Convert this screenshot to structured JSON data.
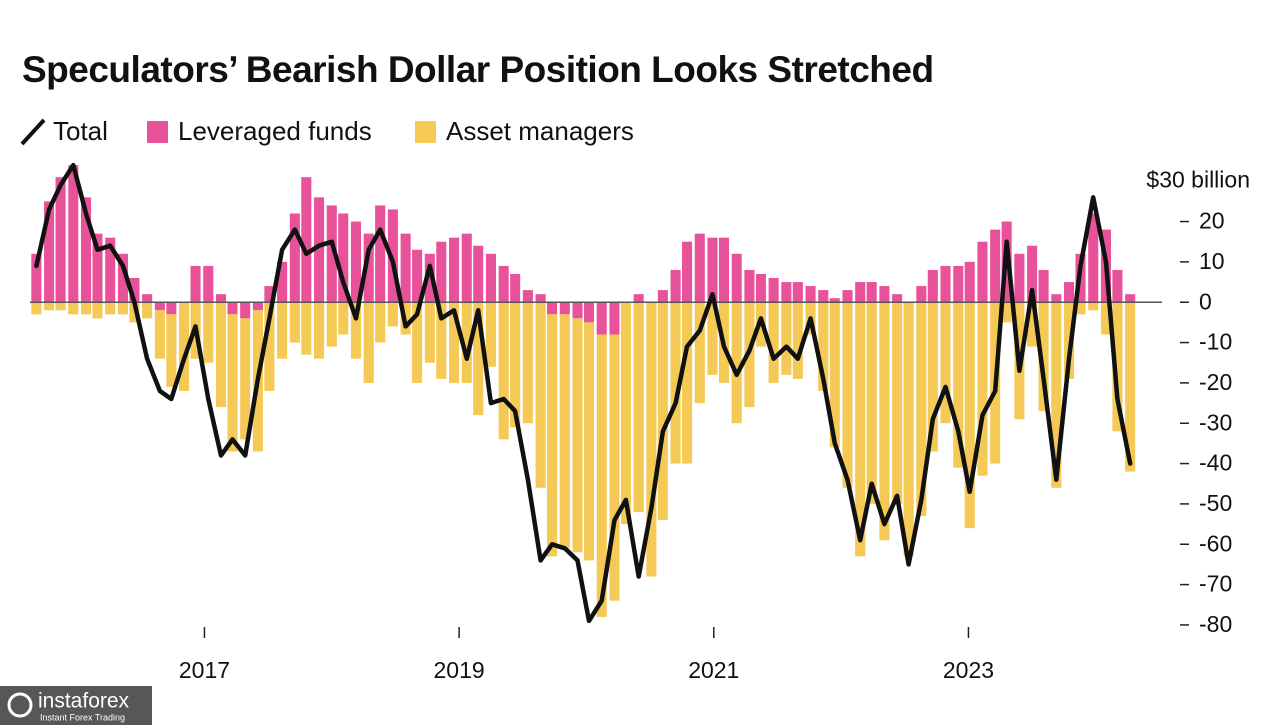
{
  "chart_data": {
    "type": "combo",
    "title": "Speculators’ Bearish Dollar Position Looks Stretched",
    "x": [
      2015.68,
      2015.78,
      2015.87,
      2015.97,
      2016.07,
      2016.16,
      2016.26,
      2016.36,
      2016.45,
      2016.55,
      2016.65,
      2016.74,
      2016.84,
      2016.93,
      2017.03,
      2017.13,
      2017.22,
      2017.32,
      2017.42,
      2017.51,
      2017.61,
      2017.71,
      2017.8,
      2017.9,
      2018.0,
      2018.09,
      2018.19,
      2018.29,
      2018.38,
      2018.48,
      2018.58,
      2018.67,
      2018.77,
      2018.86,
      2018.96,
      2019.06,
      2019.15,
      2019.25,
      2019.35,
      2019.44,
      2019.54,
      2019.64,
      2019.73,
      2019.83,
      2019.93,
      2020.02,
      2020.12,
      2020.22,
      2020.31,
      2020.41,
      2020.51,
      2020.6,
      2020.7,
      2020.79,
      2020.89,
      2020.99,
      2021.08,
      2021.18,
      2021.28,
      2021.37,
      2021.47,
      2021.57,
      2021.66,
      2021.76,
      2021.86,
      2021.95,
      2022.05,
      2022.15,
      2022.24,
      2022.34,
      2022.44,
      2022.53,
      2022.63,
      2022.72,
      2022.82,
      2022.92,
      2023.01,
      2023.11,
      2023.21,
      2023.3,
      2023.4,
      2023.5,
      2023.59,
      2023.69,
      2023.79,
      2023.88,
      2023.98,
      2024.08,
      2024.17,
      2024.27
    ],
    "series": [
      {
        "name": "Total",
        "type": "line",
        "color": "#111111",
        "values": [
          9,
          23,
          29,
          34,
          22,
          13,
          14,
          9,
          0,
          -14,
          -22,
          -24,
          -14,
          -6,
          -24,
          -38,
          -34,
          -38,
          -19,
          -4,
          13,
          18,
          12,
          14,
          15,
          5,
          -4,
          13,
          18,
          10,
          -6,
          -3,
          9,
          -4,
          -2,
          -14,
          -2,
          -25,
          -24,
          -27,
          -44,
          -64,
          -60,
          -61,
          -64,
          -79,
          -74,
          -54,
          -49,
          -68,
          -51,
          -32,
          -25,
          -11,
          -7,
          2,
          -11,
          -18,
          -12,
          -4,
          -14,
          -11,
          -14,
          -4,
          -19,
          -35,
          -44,
          -59,
          -45,
          -55,
          -48,
          -65,
          -49,
          -29,
          -21,
          -32,
          -47,
          -28,
          -22,
          15,
          -17,
          3,
          -19,
          -44,
          -14,
          9,
          26,
          10,
          -24,
          -40
        ]
      },
      {
        "name": "Leveraged funds",
        "type": "bar",
        "color": "#e8529b",
        "values": [
          12,
          25,
          31,
          34,
          26,
          17,
          16,
          12,
          6,
          2,
          -2,
          -3,
          0,
          9,
          9,
          2,
          -3,
          -4,
          -2,
          4,
          10,
          22,
          31,
          26,
          24,
          22,
          20,
          17,
          24,
          23,
          17,
          13,
          12,
          15,
          16,
          17,
          14,
          12,
          9,
          7,
          3,
          2,
          -3,
          -3,
          -4,
          -5,
          -8,
          -8,
          0,
          2,
          0,
          3,
          8,
          15,
          17,
          16,
          16,
          12,
          8,
          7,
          6,
          5,
          5,
          4,
          3,
          1,
          3,
          5,
          5,
          4,
          2,
          0,
          4,
          8,
          9,
          9,
          10,
          15,
          18,
          20,
          12,
          14,
          8,
          2,
          5,
          12,
          22,
          18,
          8,
          2
        ]
      },
      {
        "name": "Asset managers",
        "type": "bar",
        "color": "#f5c955",
        "values": [
          -3,
          -2,
          -2,
          -3,
          -3,
          -4,
          -3,
          -3,
          -5,
          -4,
          -12,
          -18,
          -22,
          -14,
          -15,
          -26,
          -34,
          -30,
          -35,
          -22,
          -14,
          -10,
          -13,
          -14,
          -11,
          -8,
          -14,
          -20,
          -10,
          -6,
          -8,
          -20,
          -15,
          -19,
          -20,
          -20,
          -28,
          -16,
          -34,
          -31,
          -30,
          -46,
          -60,
          -58,
          -58,
          -59,
          -70,
          -66,
          -55,
          -52,
          -68,
          -54,
          -40,
          -40,
          -25,
          -18,
          -20,
          -30,
          -26,
          -11,
          -20,
          -18,
          -19,
          -8,
          -22,
          -36,
          -46,
          -63,
          -50,
          -59,
          -50,
          -63,
          -53,
          -37,
          -30,
          -41,
          -56,
          -43,
          -40,
          -5,
          -29,
          -11,
          -27,
          -46,
          -19,
          -3,
          -2,
          -8,
          -32,
          -42
        ]
      }
    ],
    "xlim": [
      2015.63,
      2024.52
    ],
    "xticks": [
      2017,
      2019,
      2021,
      2023
    ],
    "ylim": [
      -82,
      36
    ],
    "yticks": [
      {
        "value": 30,
        "label": "$30 billion"
      },
      20,
      10,
      0,
      -10,
      -20,
      -30,
      -40,
      -50,
      -60,
      -70,
      -80
    ],
    "y_axis_side": "right"
  },
  "watermark": {
    "brand": "instaforex",
    "tagline": "Instant Forex Trading"
  }
}
